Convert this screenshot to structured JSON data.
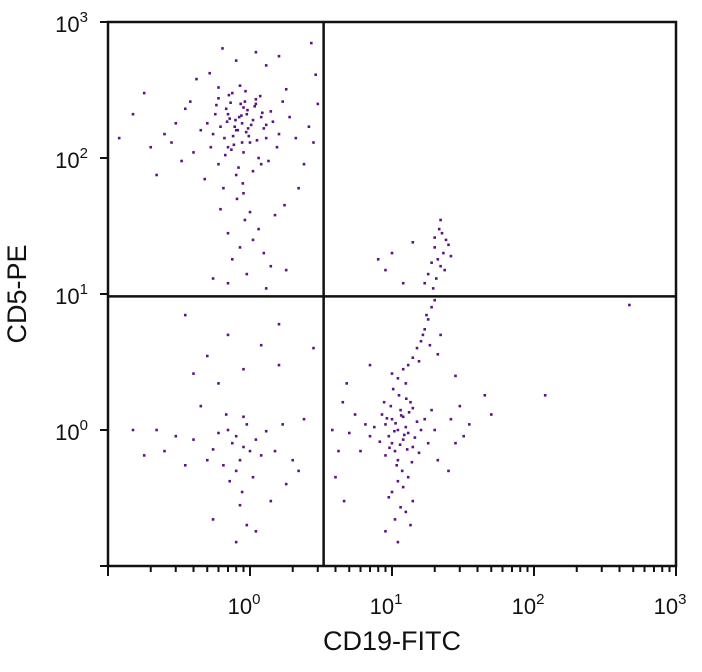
{
  "chart_data": {
    "type": "scatter",
    "title": "",
    "xlabel": "CD19-FITC",
    "ylabel": "CD5-PE",
    "x_scale": "log",
    "y_scale": "log",
    "xlim": [
      0.1,
      1000
    ],
    "ylim": [
      0.1,
      1000
    ],
    "x_tick_labels": [
      {
        "base": "10",
        "exp": "0",
        "value": 1
      },
      {
        "base": "10",
        "exp": "1",
        "value": 10
      },
      {
        "base": "10",
        "exp": "2",
        "value": 100
      },
      {
        "base": "10",
        "exp": "3",
        "value": 1000
      }
    ],
    "y_tick_labels": [
      {
        "base": "10",
        "exp": "0",
        "value": 1
      },
      {
        "base": "10",
        "exp": "1",
        "value": 10
      },
      {
        "base": "10",
        "exp": "2",
        "value": 100
      },
      {
        "base": "10",
        "exp": "3",
        "value": 1000
      }
    ],
    "quadrant_gates": {
      "x": 3.3,
      "y": 9.6
    },
    "point_color": "#5a1580",
    "grid": false,
    "legend": "none",
    "series": [
      {
        "points": [
          [
            0.82,
            160
          ],
          [
            0.95,
            210
          ],
          [
            0.7,
            120
          ],
          [
            1.1,
            250
          ],
          [
            0.6,
            90
          ],
          [
            0.88,
            180
          ],
          [
            1.3,
            140
          ],
          [
            0.75,
            300
          ],
          [
            0.9,
            110
          ],
          [
            1.05,
            190
          ],
          [
            0.68,
            230
          ],
          [
            0.8,
            75
          ],
          [
            1.2,
            200
          ],
          [
            0.55,
            150
          ],
          [
            0.92,
            260
          ],
          [
            1.0,
            130
          ],
          [
            0.78,
            170
          ],
          [
            1.4,
            220
          ],
          [
            0.65,
            60
          ],
          [
            0.85,
            340
          ],
          [
            1.15,
            100
          ],
          [
            0.72,
            195
          ],
          [
            0.98,
            145
          ],
          [
            0.6,
            275
          ],
          [
            1.25,
            165
          ],
          [
            0.83,
            85
          ],
          [
            0.7,
            210
          ],
          [
            1.08,
            240
          ],
          [
            0.9,
            55
          ],
          [
            0.5,
            180
          ],
          [
            1.6,
            150
          ],
          [
            0.77,
            125
          ],
          [
            0.93,
            310
          ],
          [
            1.02,
            175
          ],
          [
            0.66,
            140
          ],
          [
            0.87,
            205
          ],
          [
            1.35,
            95
          ],
          [
            0.58,
            245
          ],
          [
            0.8,
            160
          ],
          [
            1.18,
            285
          ],
          [
            0.74,
            115
          ],
          [
            0.96,
            225
          ],
          [
            1.45,
            185
          ],
          [
            0.62,
            170
          ],
          [
            0.89,
            65
          ],
          [
            1.12,
            135
          ],
          [
            0.71,
            290
          ],
          [
            0.84,
            200
          ],
          [
            1.05,
            80
          ],
          [
            0.53,
            120
          ],
          [
            1.7,
            260
          ],
          [
            0.79,
            190
          ],
          [
            0.94,
            155
          ],
          [
            1.22,
            215
          ],
          [
            0.67,
            105
          ],
          [
            0.86,
            250
          ],
          [
            1.0,
            40
          ],
          [
            0.6,
            330
          ],
          [
            1.3,
            175
          ],
          [
            0.76,
            145
          ],
          [
            0.9,
            235
          ],
          [
            1.55,
            120
          ],
          [
            0.69,
            185
          ],
          [
            0.81,
            50
          ],
          [
            1.1,
            270
          ],
          [
            0.57,
            210
          ],
          [
            0.97,
            165
          ],
          [
            1.2,
            90
          ],
          [
            0.73,
            255
          ],
          [
            0.88,
            130
          ],
          [
            0.45,
            160
          ],
          [
            1.9,
            200
          ],
          [
            0.4,
            110
          ],
          [
            2.1,
            140
          ],
          [
            0.35,
            230
          ],
          [
            0.3,
            180
          ],
          [
            2.4,
            90
          ],
          [
            0.28,
            130
          ],
          [
            1.8,
            320
          ],
          [
            0.48,
            70
          ],
          [
            0.25,
            150
          ],
          [
            2.6,
            170
          ],
          [
            0.38,
            260
          ],
          [
            2.2,
            60
          ],
          [
            0.33,
            95
          ],
          [
            0.42,
            380
          ],
          [
            1.75,
            45
          ],
          [
            0.52,
            420
          ],
          [
            1.3,
            480
          ],
          [
            0.8,
            520
          ],
          [
            0.92,
            35
          ],
          [
            1.15,
            30
          ],
          [
            0.7,
            28
          ],
          [
            1.5,
            38
          ],
          [
            0.62,
            42
          ],
          [
            1.05,
            25
          ],
          [
            0.85,
            22
          ],
          [
            1.25,
            20
          ],
          [
            0.75,
            18
          ],
          [
            1.4,
            16
          ],
          [
            0.2,
            120
          ],
          [
            0.15,
            210
          ],
          [
            3.0,
            250
          ],
          [
            2.8,
            130
          ],
          [
            0.22,
            75
          ],
          [
            0.18,
            300
          ],
          [
            2.9,
            410
          ],
          [
            0.12,
            140
          ],
          [
            2.7,
            700
          ],
          [
            1.6,
            560
          ],
          [
            0.7,
            12
          ],
          [
            0.95,
            14
          ],
          [
            1.3,
            11
          ],
          [
            0.55,
            13
          ],
          [
            1.8,
            15
          ],
          [
            0.64,
            640
          ],
          [
            1.1,
            600
          ],
          [
            11,
            1.0
          ],
          [
            12,
            0.85
          ],
          [
            10,
            1.2
          ],
          [
            13,
            0.95
          ],
          [
            9,
            1.1
          ],
          [
            14,
            0.75
          ],
          [
            11.5,
            1.4
          ],
          [
            10.5,
            0.7
          ],
          [
            12.5,
            1.05
          ],
          [
            9.5,
            0.9
          ],
          [
            15,
            1.15
          ],
          [
            8.5,
            1.3
          ],
          [
            11,
            0.6
          ],
          [
            13.5,
            1.6
          ],
          [
            10,
            0.8
          ],
          [
            12,
            1.25
          ],
          [
            9,
            0.65
          ],
          [
            14.5,
            0.88
          ],
          [
            11.2,
            1.8
          ],
          [
            10.8,
            0.55
          ],
          [
            16,
            1.0
          ],
          [
            7.5,
            1.05
          ],
          [
            12.8,
            0.72
          ],
          [
            9.8,
            1.5
          ],
          [
            13.2,
            1.35
          ],
          [
            8.2,
            0.82
          ],
          [
            11.8,
            0.5
          ],
          [
            10.2,
            2.0
          ],
          [
            15.5,
            0.68
          ],
          [
            9.2,
            1.22
          ],
          [
            12.2,
            0.92
          ],
          [
            14,
            1.45
          ],
          [
            10.6,
            1.12
          ],
          [
            11.4,
            0.78
          ],
          [
            8.8,
            1.6
          ],
          [
            13.8,
            0.58
          ],
          [
            10.4,
            0.98
          ],
          [
            12.6,
            1.7
          ],
          [
            9.6,
            0.74
          ],
          [
            11.6,
            1.28
          ],
          [
            17,
            1.2
          ],
          [
            7,
            0.9
          ],
          [
            18,
            0.8
          ],
          [
            6.5,
            1.1
          ],
          [
            19,
            1.4
          ],
          [
            6,
            0.7
          ],
          [
            20,
            1.0
          ],
          [
            5.5,
            1.3
          ],
          [
            21,
            0.6
          ],
          [
            5,
            0.95
          ],
          [
            11,
            0.42
          ],
          [
            12,
            0.38
          ],
          [
            10,
            0.35
          ],
          [
            13,
            0.45
          ],
          [
            9.5,
            0.32
          ],
          [
            14,
            0.3
          ],
          [
            11.5,
            0.27
          ],
          [
            12.5,
            0.25
          ],
          [
            10.5,
            0.22
          ],
          [
            13.5,
            0.2
          ],
          [
            11,
            2.4
          ],
          [
            12,
            2.8
          ],
          [
            10,
            2.6
          ],
          [
            13,
            3.0
          ],
          [
            14,
            3.4
          ],
          [
            12.5,
            2.2
          ],
          [
            15,
            4.0
          ],
          [
            16,
            4.5
          ],
          [
            17,
            5.5
          ],
          [
            18,
            6.5
          ],
          [
            19,
            8
          ],
          [
            17.5,
            7
          ],
          [
            20,
            9
          ],
          [
            16.5,
            5
          ],
          [
            18.5,
            4.2
          ],
          [
            21,
            3.6
          ],
          [
            15.5,
            3.2
          ],
          [
            22,
            5.0
          ],
          [
            19.5,
            11
          ],
          [
            20.5,
            13
          ],
          [
            22,
            16
          ],
          [
            18,
            14
          ],
          [
            21,
            18
          ],
          [
            23,
            20
          ],
          [
            20,
            22
          ],
          [
            24,
            25
          ],
          [
            22.5,
            28
          ],
          [
            19,
            17
          ],
          [
            25,
            23
          ],
          [
            21.5,
            30
          ],
          [
            23.5,
            15
          ],
          [
            17,
            12
          ],
          [
            26,
            19
          ],
          [
            20,
            26
          ],
          [
            22,
            35
          ],
          [
            9,
            15
          ],
          [
            10,
            20
          ],
          [
            12,
            12
          ],
          [
            8,
            18
          ],
          [
            14,
            24
          ],
          [
            26,
            1.2
          ],
          [
            28,
            0.8
          ],
          [
            30,
            1.5
          ],
          [
            32,
            0.9
          ],
          [
            35,
            1.1
          ],
          [
            45,
            1.8
          ],
          [
            50,
            1.3
          ],
          [
            3.8,
            1.0
          ],
          [
            4.2,
            0.7
          ],
          [
            4.5,
            1.6
          ],
          [
            4,
            0.45
          ],
          [
            4.8,
            2.2
          ],
          [
            4.6,
            0.3
          ],
          [
            9,
            0.18
          ],
          [
            11,
            0.15
          ],
          [
            120,
            1.8
          ],
          [
            470,
            8.3
          ],
          [
            28,
            2.5
          ],
          [
            7,
            3
          ],
          [
            25,
            0.5
          ],
          [
            0.8,
            0.9
          ],
          [
            0.9,
            0.75
          ],
          [
            0.7,
            1.0
          ],
          [
            1.0,
            0.7
          ],
          [
            0.85,
            0.6
          ],
          [
            0.75,
            0.8
          ],
          [
            0.95,
            1.1
          ],
          [
            0.65,
            0.55
          ],
          [
            1.1,
            0.85
          ],
          [
            0.6,
            0.95
          ],
          [
            0.8,
            0.5
          ],
          [
            1.2,
            0.65
          ],
          [
            0.55,
            0.72
          ],
          [
            0.9,
            1.25
          ],
          [
            0.72,
            0.42
          ],
          [
            1.3,
            0.98
          ],
          [
            0.5,
            0.6
          ],
          [
            1.05,
            0.45
          ],
          [
            0.68,
            1.3
          ],
          [
            0.88,
            0.35
          ],
          [
            0.4,
            0.85
          ],
          [
            1.5,
            0.7
          ],
          [
            0.35,
            0.55
          ],
          [
            1.7,
            1.1
          ],
          [
            0.3,
            0.9
          ],
          [
            2.0,
            0.6
          ],
          [
            0.25,
            0.7
          ],
          [
            0.45,
            1.5
          ],
          [
            1.8,
            0.4
          ],
          [
            0.22,
            1.0
          ],
          [
            0.6,
            2.2
          ],
          [
            0.9,
            2.8
          ],
          [
            0.5,
            3.5
          ],
          [
            1.2,
            4.2
          ],
          [
            0.7,
            5
          ],
          [
            1.6,
            3.0
          ],
          [
            0.4,
            2.6
          ],
          [
            0.85,
            0.28
          ],
          [
            1.4,
            0.3
          ],
          [
            0.55,
            0.22
          ],
          [
            0.15,
            1.0
          ],
          [
            0.18,
            0.65
          ],
          [
            2.4,
            1.2
          ],
          [
            2.2,
            0.5
          ],
          [
            0.8,
            0.15
          ],
          [
            1.1,
            0.18
          ],
          [
            0.95,
            0.2
          ],
          [
            1.6,
            6
          ],
          [
            0.35,
            7
          ],
          [
            2.8,
            4
          ]
        ]
      }
    ]
  }
}
